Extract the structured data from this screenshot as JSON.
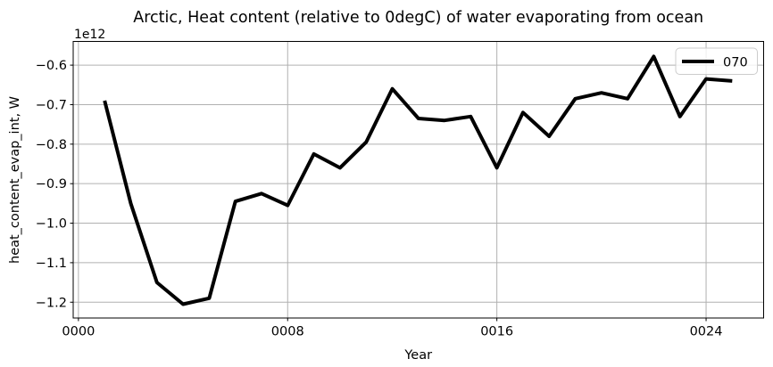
{
  "chart_data": {
    "type": "line",
    "title": "Arctic, Heat content (relative to 0degC) of water evaporating from ocean",
    "xlabel": "Year",
    "ylabel": "heat_content_evap_int, W",
    "offset_text": "1e12",
    "x": [
      1,
      2,
      3,
      4,
      5,
      6,
      7,
      8,
      9,
      10,
      11,
      12,
      13,
      14,
      15,
      16,
      17,
      18,
      19,
      20,
      21,
      22,
      23,
      24,
      25
    ],
    "series": [
      {
        "name": "070",
        "color": "#000000",
        "linewidth": 4,
        "values": [
          -0.69,
          -0.95,
          -1.15,
          -1.205,
          -1.19,
          -0.945,
          -0.925,
          -0.955,
          -0.825,
          -0.86,
          -0.795,
          -0.66,
          -0.735,
          -0.74,
          -0.73,
          -0.86,
          -0.72,
          -0.78,
          -0.685,
          -0.67,
          -0.685,
          -0.578,
          -0.73,
          -0.635,
          -0.64
        ]
      }
    ],
    "xlim": [
      -0.2,
      26.2
    ],
    "ylim": [
      -1.24,
      -0.54
    ],
    "xticks": {
      "values": [
        0,
        8,
        16,
        24
      ],
      "labels": [
        "0000",
        "0008",
        "0016",
        "0024"
      ]
    },
    "yticks": {
      "values": [
        -0.6,
        -0.7,
        -0.8,
        -0.9,
        -1.0,
        -1.1,
        -1.2
      ],
      "labels": [
        "−0.6",
        "−0.7",
        "−0.8",
        "−0.9",
        "−1.0",
        "−1.1",
        "−1.2"
      ]
    },
    "grid": true,
    "legend": {
      "label": "070",
      "position": "upper right"
    },
    "colors": {
      "line": "#000000",
      "grid": "#b0b0b0",
      "spines": "#000000",
      "background": "#ffffff",
      "legend_border": "#cccccc",
      "text": "#000000"
    }
  }
}
